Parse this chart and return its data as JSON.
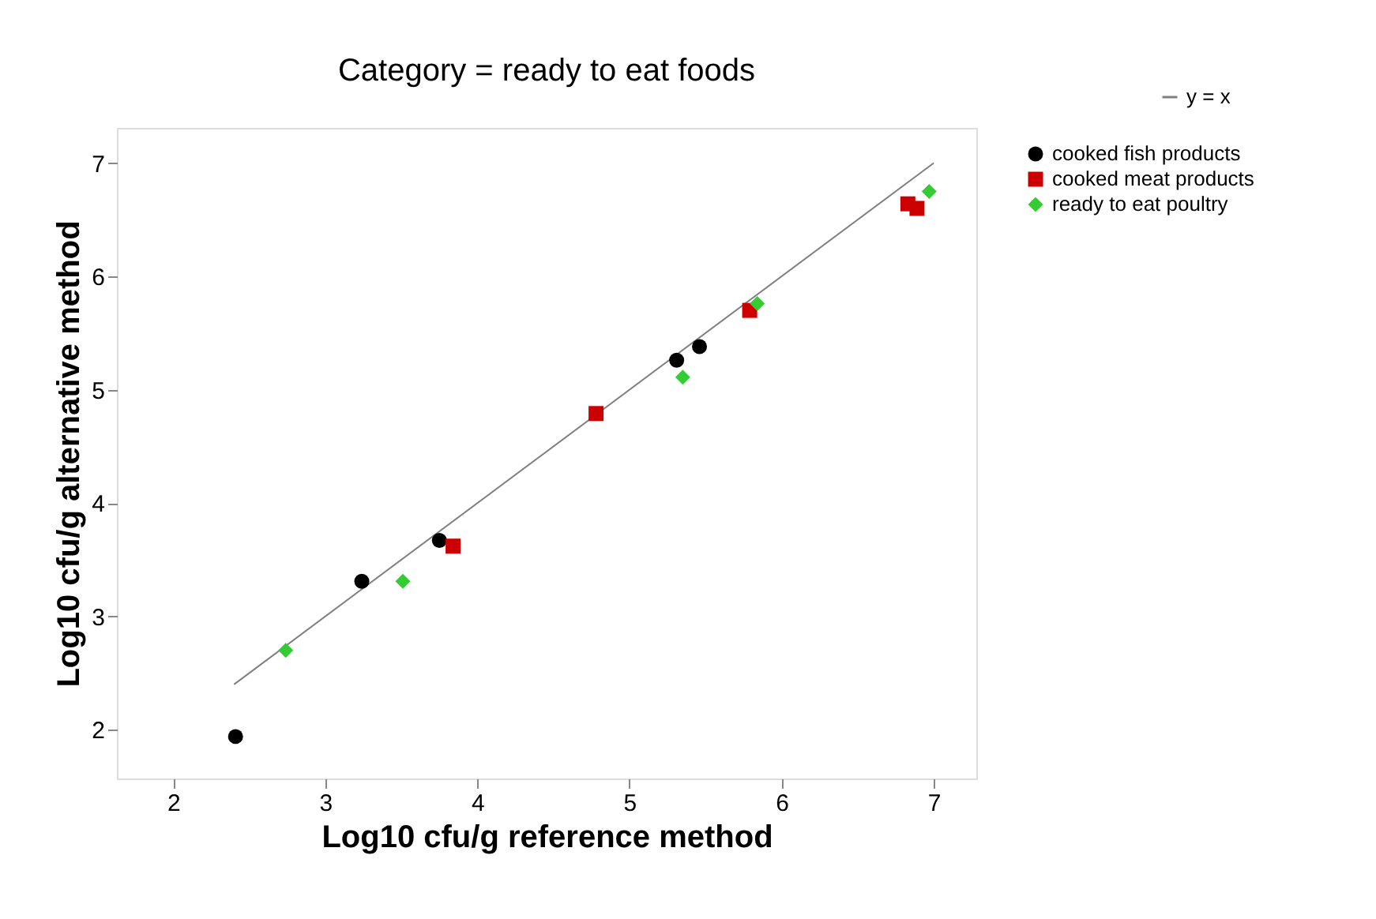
{
  "chart_data": {
    "type": "scatter",
    "title": "Category = ready to eat foods",
    "xlabel": "Log10 cfu/g reference method",
    "ylabel": "Log10 cfu/g alternative method",
    "xlim": [
      1.63,
      7.28
    ],
    "ylim": [
      1.57,
      7.31
    ],
    "xticks": [
      2,
      3,
      4,
      5,
      6,
      7
    ],
    "yticks": [
      2,
      3,
      4,
      5,
      6,
      7
    ],
    "grid": false,
    "legend": "top right",
    "series": [
      {
        "name": "y = x",
        "type": "line",
        "color": "#808080",
        "marker": "none",
        "line_style": "solid",
        "x": [
          2.4,
          7
        ],
        "values": [
          2.4,
          7
        ]
      },
      {
        "name": "cooked fish products",
        "color": "#000000",
        "marker": "circle",
        "x": [
          2.41,
          3.24,
          3.75,
          5.31,
          5.46
        ],
        "values": [
          1.94,
          3.31,
          3.67,
          5.26,
          5.38
        ]
      },
      {
        "name": "cooked meat products",
        "color": "#cc0000",
        "marker": "square",
        "x": [
          3.84,
          4.78,
          5.79,
          6.83,
          6.89
        ],
        "values": [
          3.62,
          4.79,
          5.7,
          6.64,
          6.6
        ]
      },
      {
        "name": "ready to eat poultry",
        "color": "#33cc33",
        "marker": "diamond",
        "x": [
          2.74,
          3.51,
          5.35,
          5.84,
          6.97
        ],
        "values": [
          2.7,
          3.31,
          5.11,
          5.76,
          6.75
        ]
      }
    ]
  }
}
